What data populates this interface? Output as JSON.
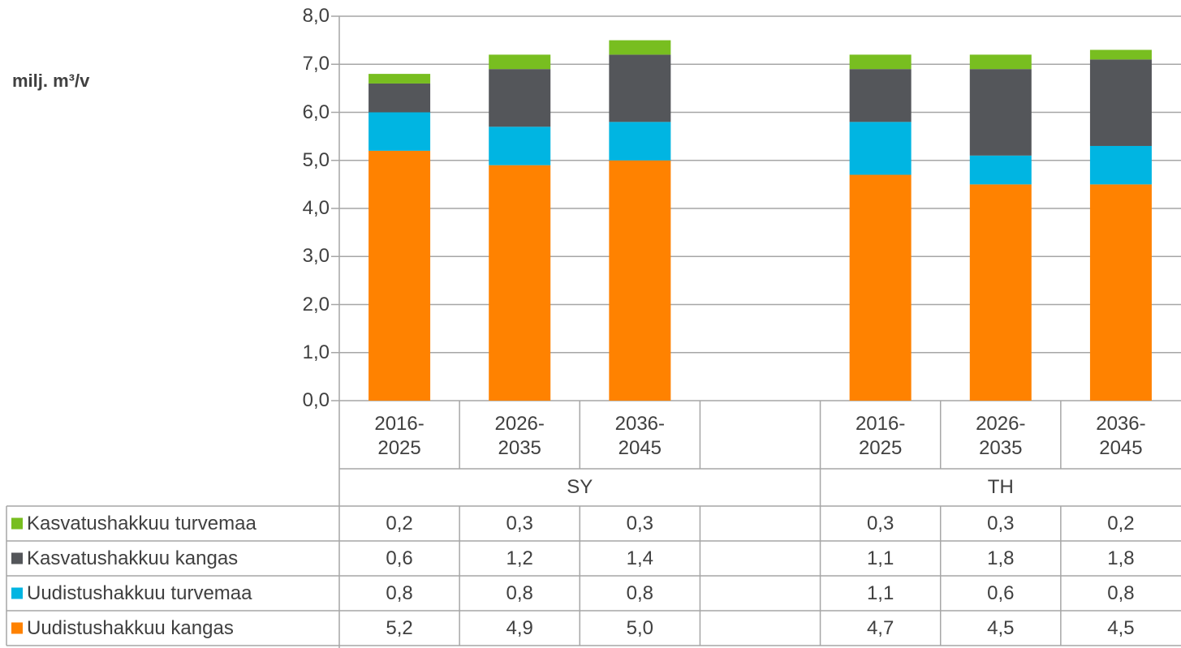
{
  "chart_data": {
    "type": "bar",
    "stacked": true,
    "y_label": "milj. m³/v",
    "categories": [
      "2016-2025",
      "2026-2035",
      "2036-2045",
      null,
      "2016-2025",
      "2026-2035",
      "2036-2045"
    ],
    "groups": [
      {
        "name": "SY",
        "span": [
          0,
          3
        ]
      },
      {
        "name": "TH",
        "span": [
          4,
          6
        ]
      }
    ],
    "series": [
      {
        "name": "Kasvatushakkuu turvemaa",
        "color": "#78be20",
        "values": [
          0.2,
          0.3,
          0.3,
          null,
          0.3,
          0.3,
          0.2
        ],
        "value_labels": [
          "0,2",
          "0,3",
          "0,3",
          null,
          "0,3",
          "0,3",
          "0,2"
        ]
      },
      {
        "name": "Kasvatushakkuu kangas",
        "color": "#54565a",
        "values": [
          0.6,
          1.2,
          1.4,
          null,
          1.1,
          1.8,
          1.8
        ],
        "value_labels": [
          "0,6",
          "1,2",
          "1,4",
          null,
          "1,1",
          "1,8",
          "1,8"
        ]
      },
      {
        "name": "Uudistushakkuu turvemaa",
        "color": "#00b5e2",
        "values": [
          0.8,
          0.8,
          0.8,
          null,
          1.1,
          0.6,
          0.8
        ],
        "value_labels": [
          "0,8",
          "0,8",
          "0,8",
          null,
          "1,1",
          "0,6",
          "0,8"
        ]
      },
      {
        "name": "Uudistushakkuu kangas",
        "color": "#ff8200",
        "values": [
          5.2,
          4.9,
          5.0,
          null,
          4.7,
          4.5,
          4.5
        ],
        "value_labels": [
          "5,2",
          "4,9",
          "5,0",
          null,
          "4,7",
          "4,5",
          "4,5"
        ]
      }
    ],
    "ylim": [
      0,
      8
    ],
    "yticks": [
      {
        "value": 0,
        "label": "0,0"
      },
      {
        "value": 1,
        "label": "1,0"
      },
      {
        "value": 2,
        "label": "2,0"
      },
      {
        "value": 3,
        "label": "3,0"
      },
      {
        "value": 4,
        "label": "4,0"
      },
      {
        "value": 5,
        "label": "5,0"
      },
      {
        "value": 6,
        "label": "6,0"
      },
      {
        "value": 7,
        "label": "7,0"
      },
      {
        "value": 8,
        "label": "8,0"
      }
    ],
    "grid": true,
    "legend": "table"
  }
}
